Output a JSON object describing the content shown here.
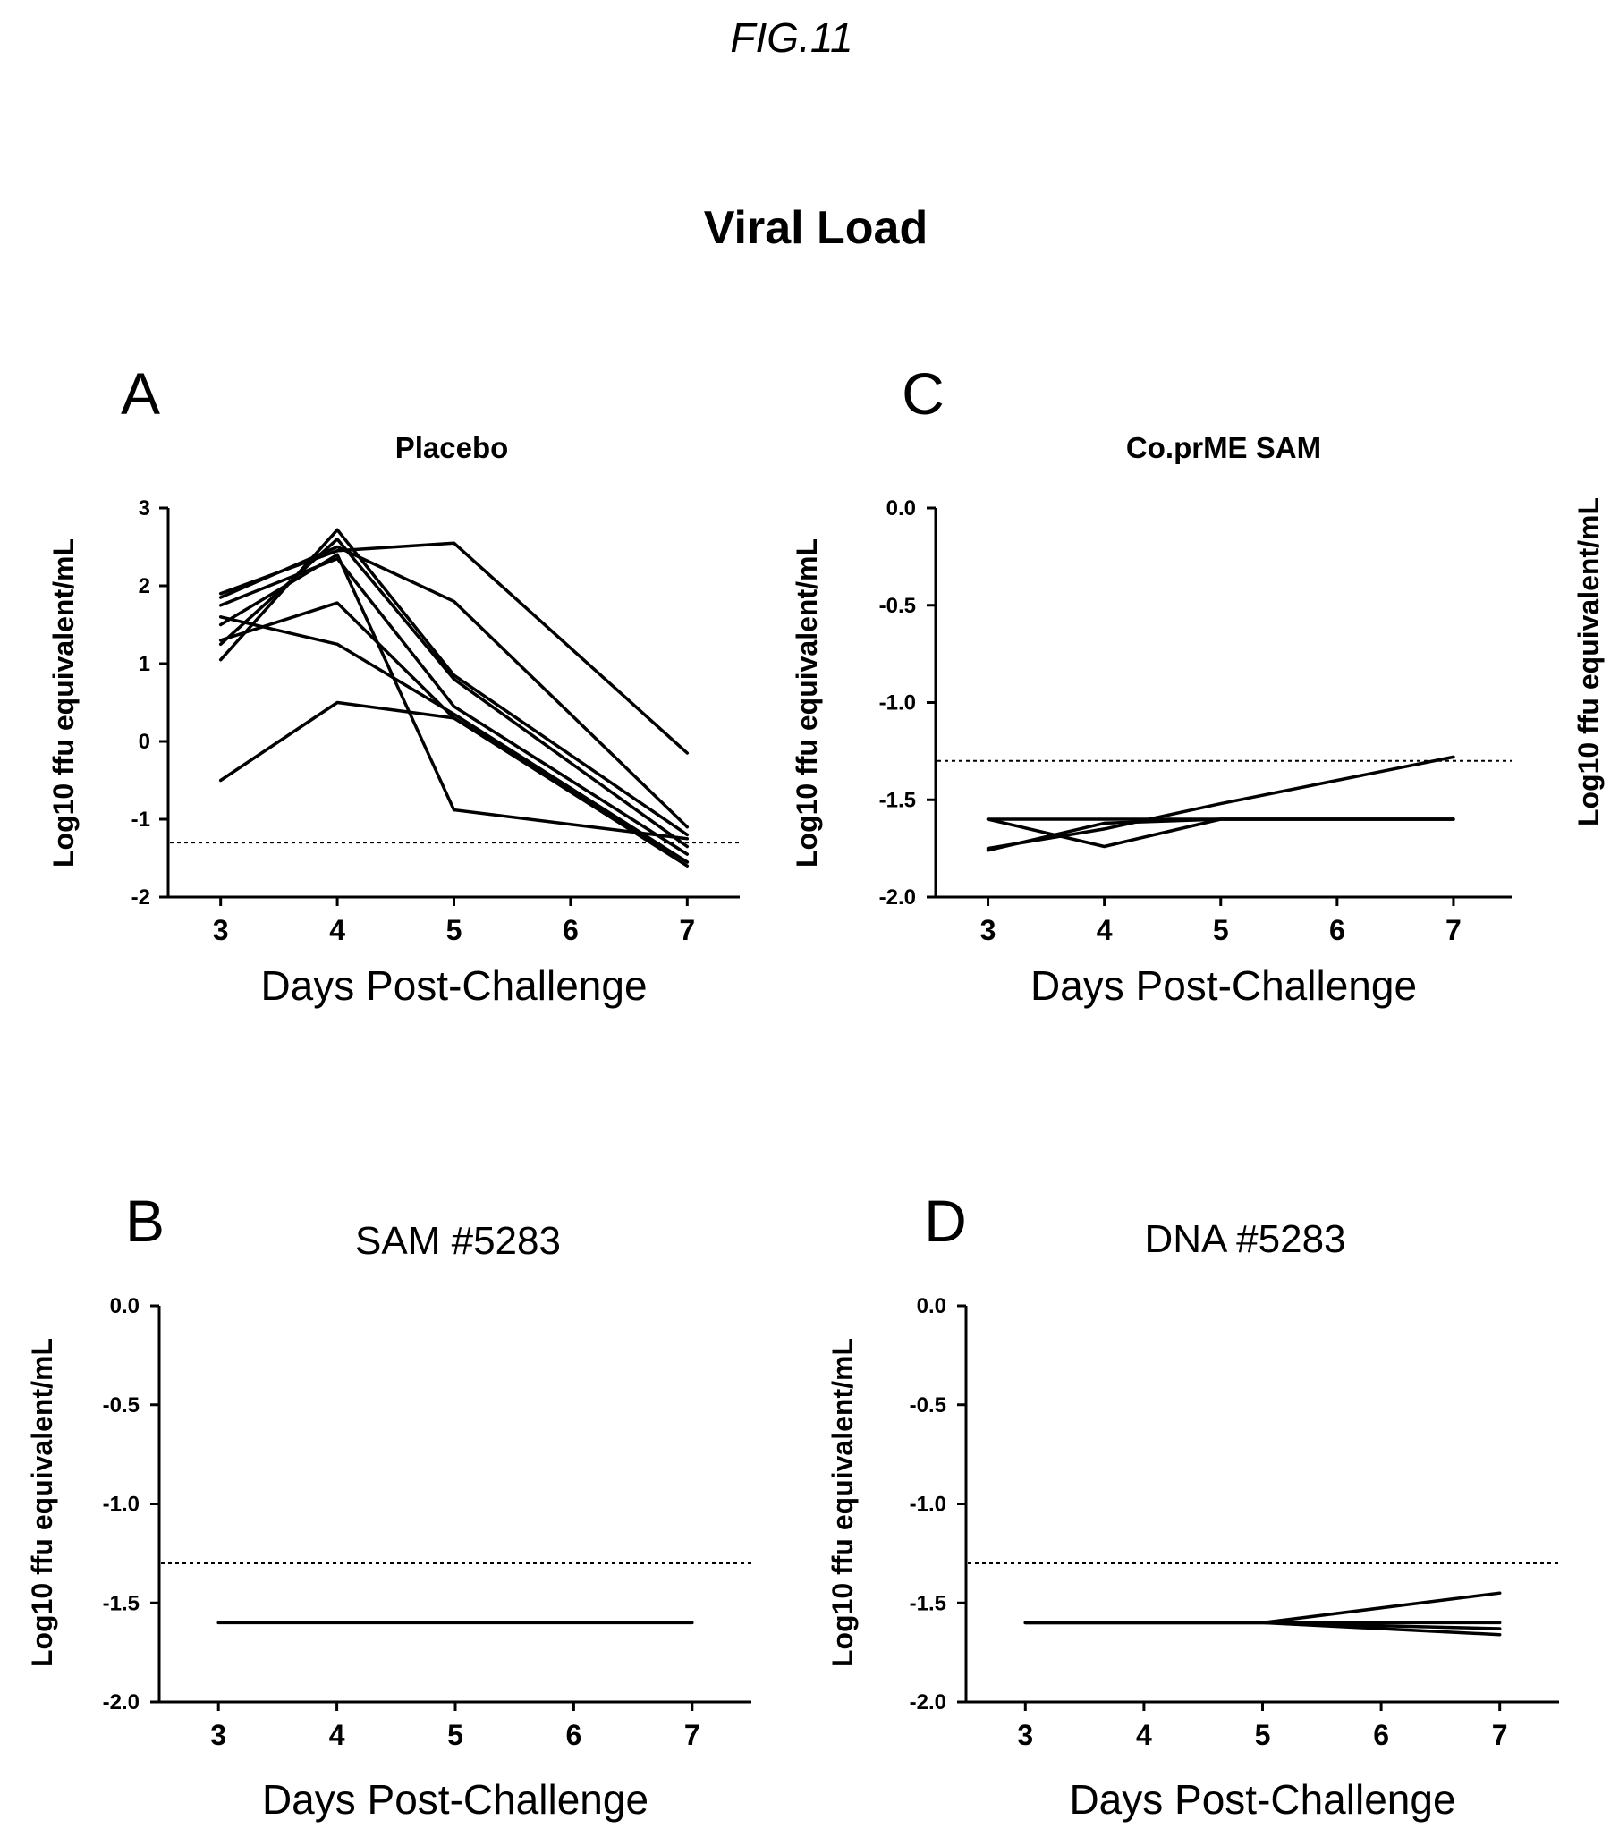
{
  "figure_label": "FIG.11",
  "main_title": "Viral Load",
  "chart_data": [
    {
      "id": "A",
      "type": "line",
      "panel_letter": "A",
      "title": "Placebo",
      "title_style": "bold",
      "xlabel": "Days Post-Challenge",
      "ylabel": "Log10 ffu equivalent/mL",
      "x": [
        3,
        4,
        5,
        6,
        7
      ],
      "x_ticks": [
        "3",
        "4",
        "5",
        "6",
        "7"
      ],
      "xlim": [
        2.55,
        7.45
      ],
      "ylim": [
        -2,
        3
      ],
      "y_ticks": [
        -2,
        -1,
        0,
        1,
        2,
        3
      ],
      "y_tick_labels": [
        "-2",
        "-1",
        "0",
        "1",
        "2",
        "3"
      ],
      "reference_line": -1.3,
      "series": [
        {
          "x": [
            3,
            4,
            5,
            7
          ],
          "values": [
            1.9,
            2.45,
            2.55,
            -0.15
          ]
        },
        {
          "x": [
            3,
            4,
            5,
            7
          ],
          "values": [
            1.85,
            2.5,
            1.8,
            -1.1
          ]
        },
        {
          "x": [
            3,
            4,
            5,
            7
          ],
          "values": [
            1.05,
            2.72,
            0.85,
            -1.2
          ]
        },
        {
          "x": [
            3,
            4,
            5,
            7
          ],
          "values": [
            1.25,
            2.6,
            0.8,
            -1.35
          ]
        },
        {
          "x": [
            3,
            4,
            5,
            7
          ],
          "values": [
            1.75,
            2.35,
            0.45,
            -1.45
          ]
        },
        {
          "x": [
            3,
            4,
            5,
            7
          ],
          "values": [
            1.6,
            1.25,
            0.35,
            -1.55
          ]
        },
        {
          "x": [
            3,
            4,
            5,
            7
          ],
          "values": [
            1.3,
            1.78,
            0.3,
            -1.6
          ]
        },
        {
          "x": [
            3,
            4,
            5,
            7
          ],
          "values": [
            -0.5,
            0.5,
            0.3,
            -1.55
          ]
        },
        {
          "x": [
            3,
            4,
            5,
            7
          ],
          "values": [
            1.5,
            2.4,
            -0.88,
            -1.25
          ]
        }
      ]
    },
    {
      "id": "C",
      "type": "line",
      "panel_letter": "C",
      "title": "Co.prME SAM",
      "title_style": "bold",
      "xlabel": "Days Post-Challenge",
      "ylabel": "Log10 ffu equivalent/mL",
      "x": [
        3,
        4,
        5,
        6,
        7
      ],
      "x_ticks": [
        "3",
        "4",
        "5",
        "6",
        "7"
      ],
      "xlim": [
        2.55,
        7.5
      ],
      "ylim": [
        -2.0,
        0.0
      ],
      "y_ticks": [
        -2.0,
        -1.5,
        -1.0,
        -0.5,
        0.0
      ],
      "y_tick_labels": [
        "-2.0",
        "-1.5",
        "-1.0",
        "-0.5",
        "0.0"
      ],
      "reference_line": -1.3,
      "series": [
        {
          "x": [
            3,
            4,
            5,
            7
          ],
          "values": [
            -1.6,
            -1.6,
            -1.6,
            -1.6
          ]
        },
        {
          "x": [
            3,
            4,
            5,
            7
          ],
          "values": [
            -1.75,
            -1.65,
            -1.52,
            -1.28
          ]
        },
        {
          "x": [
            3,
            4,
            5,
            7
          ],
          "values": [
            -1.6,
            -1.74,
            -1.6,
            -1.6
          ]
        },
        {
          "x": [
            3,
            4,
            5,
            7
          ],
          "values": [
            -1.76,
            -1.62,
            -1.6,
            -1.6
          ]
        }
      ]
    },
    {
      "id": "B",
      "type": "line",
      "panel_letter": "B",
      "title": "SAM #5283",
      "title_style": "plain",
      "xlabel": "Days Post-Challenge",
      "ylabel": "Log10 ffu equivalent/mL",
      "x": [
        3,
        4,
        5,
        6,
        7
      ],
      "x_ticks": [
        "3",
        "4",
        "5",
        "6",
        "7"
      ],
      "xlim": [
        2.5,
        7.5
      ],
      "ylim": [
        -2.0,
        0.0
      ],
      "y_ticks": [
        -2.0,
        -1.5,
        -1.0,
        -0.5,
        0.0
      ],
      "y_tick_labels": [
        "-2.0",
        "-1.5",
        "-1.0",
        "-0.5",
        "0.0"
      ],
      "reference_line": -1.3,
      "series": [
        {
          "x": [
            3,
            7
          ],
          "values": [
            -1.6,
            -1.6
          ]
        }
      ]
    },
    {
      "id": "D",
      "type": "line",
      "panel_letter": "D",
      "title": "DNA #5283",
      "title_style": "plain",
      "xlabel": "Days Post-Challenge",
      "ylabel": "Log10 ffu equivalent/mL",
      "x": [
        3,
        4,
        5,
        6,
        7
      ],
      "x_ticks": [
        "3",
        "4",
        "5",
        "6",
        "7"
      ],
      "xlim": [
        2.5,
        7.5
      ],
      "ylim": [
        -2.0,
        0.0
      ],
      "y_ticks": [
        -2.0,
        -1.5,
        -1.0,
        -0.5,
        0.0
      ],
      "y_tick_labels": [
        "-2.0",
        "-1.5",
        "-1.0",
        "-0.5",
        "0.0"
      ],
      "reference_line": -1.3,
      "series": [
        {
          "x": [
            3,
            5,
            7
          ],
          "values": [
            -1.6,
            -1.6,
            -1.6
          ]
        },
        {
          "x": [
            3,
            5,
            7
          ],
          "values": [
            -1.6,
            -1.6,
            -1.45
          ]
        },
        {
          "x": [
            3,
            5,
            7
          ],
          "values": [
            -1.6,
            -1.6,
            -1.63
          ]
        },
        {
          "x": [
            3,
            5,
            7
          ],
          "values": [
            -1.6,
            -1.6,
            -1.66
          ]
        }
      ]
    }
  ]
}
